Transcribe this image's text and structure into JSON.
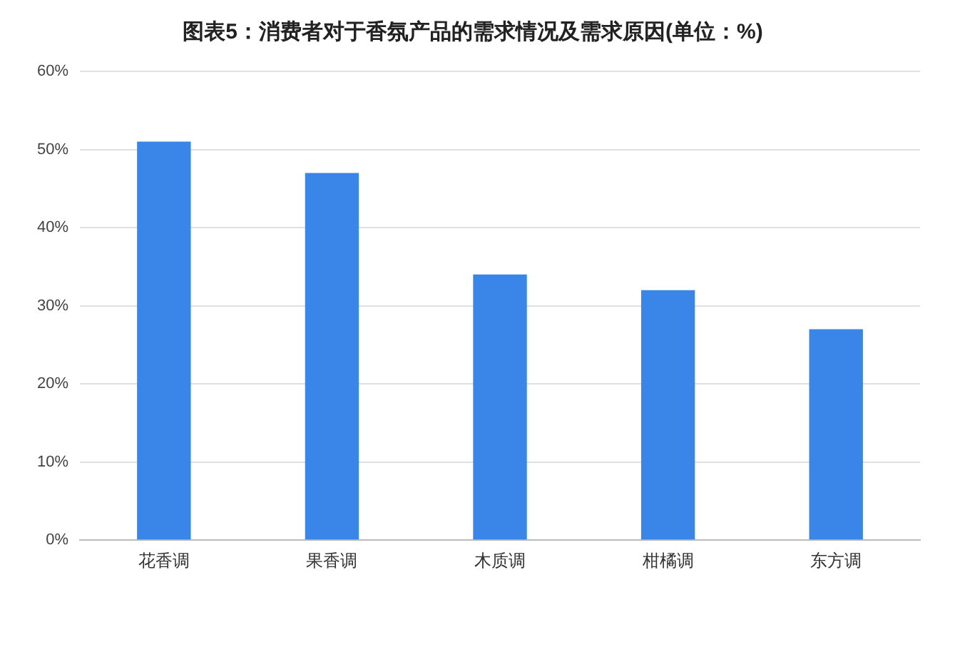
{
  "chart_data": {
    "type": "bar",
    "title": "图表5：消费者对于香氛产品的需求情况及需求原因(单位：%)",
    "categories": [
      "花香调",
      "果香调",
      "木质调",
      "柑橘调",
      "东方调"
    ],
    "values": [
      51,
      47,
      34,
      32,
      27
    ],
    "color": "#3a86e8",
    "ylim": [
      0,
      60
    ],
    "yticks": [
      {
        "value": 0,
        "label": "0%"
      },
      {
        "value": 10,
        "label": "10%"
      },
      {
        "value": 20,
        "label": "20%"
      },
      {
        "value": 30,
        "label": "30%"
      },
      {
        "value": 40,
        "label": "40%"
      },
      {
        "value": 50,
        "label": "50%"
      },
      {
        "value": 60,
        "label": "60%"
      }
    ],
    "grid": "y",
    "legend": false
  }
}
